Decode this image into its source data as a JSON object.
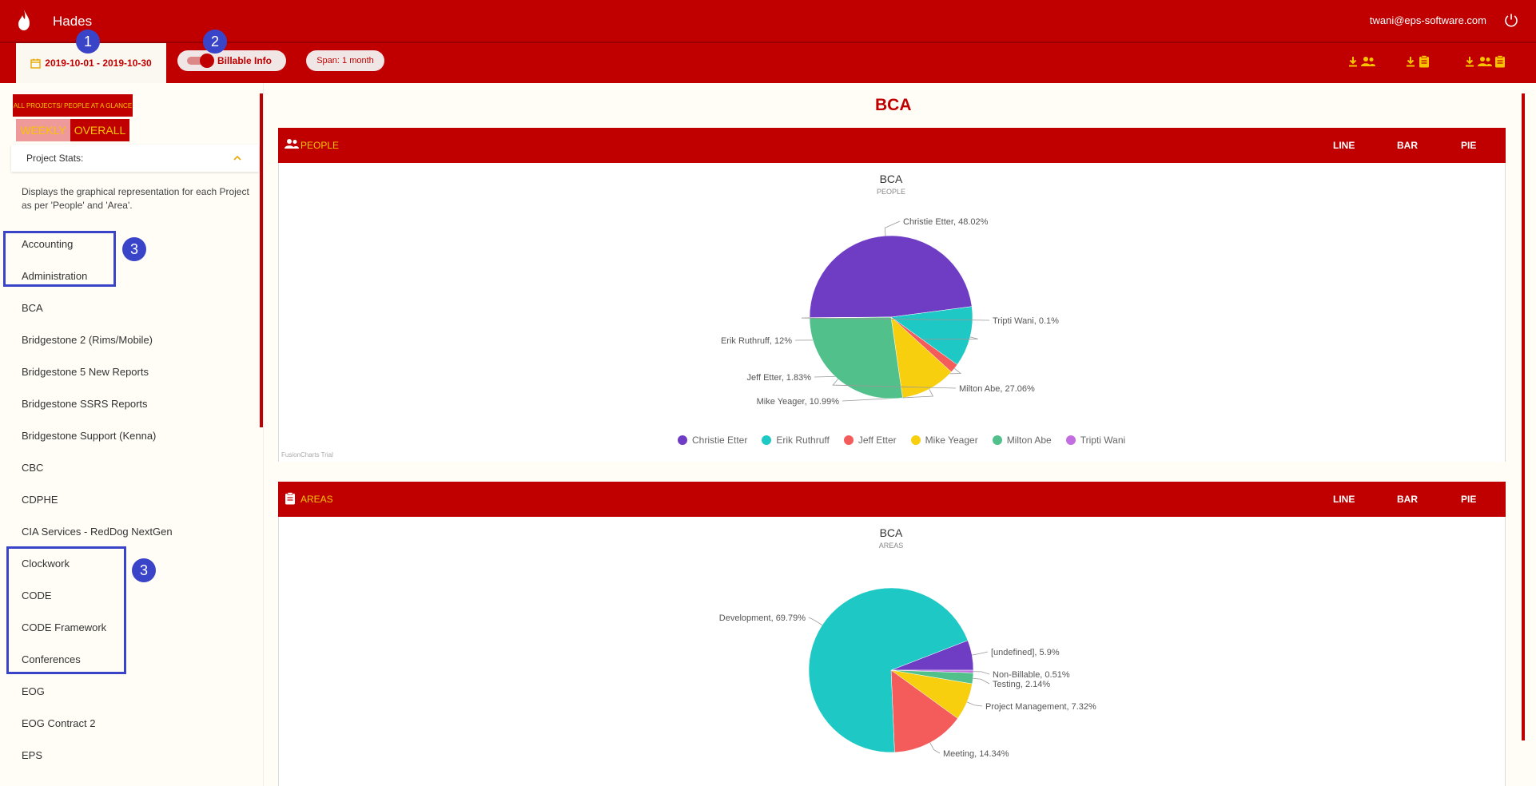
{
  "header": {
    "app_title": "Hades",
    "user_email": "twani@eps-software.com",
    "date_range": "2019-10-01 - 2019-10-30",
    "billable_label": "Billable Info",
    "span_label": "Span: 1 month",
    "icons": [
      "flame-icon",
      "power-icon",
      "calendar-icon",
      "download-people-icon",
      "download-areas-icon",
      "download-all-icon"
    ]
  },
  "annotations": [
    "1",
    "2",
    "3",
    "3"
  ],
  "sidebar": {
    "all_projects_label": "ALL PROJECTS/ PEOPLE AT A GLANCE",
    "tab_weekly": "WEEKLY",
    "tab_overall": "OVERALL",
    "stats_title": "Project Stats:",
    "description": "Displays the graphical representation for each Project as per 'People' and 'Area'.",
    "projects": [
      "Accounting",
      "Administration",
      "BCA",
      "Bridgestone 2 (Rims/Mobile)",
      "Bridgestone 5 New Reports",
      "Bridgestone SSRS Reports",
      "Bridgestone Support (Kenna)",
      "CBC",
      "CDPHE",
      "CIA Services - RedDog NextGen",
      "Clockwork",
      "CODE",
      "CODE Framework",
      "Conferences",
      "EOG",
      "EOG Contract 2",
      "EPS"
    ]
  },
  "main": {
    "title": "BCA",
    "people_panel": {
      "title": "PEOPLE",
      "tabs": [
        "LINE",
        "BAR",
        "PIE"
      ],
      "chart_title": "BCA",
      "chart_subtitle": "PEOPLE",
      "watermark": "FusionCharts Trial"
    },
    "areas_panel": {
      "title": "AREAS",
      "tabs": [
        "LINE",
        "BAR",
        "PIE"
      ],
      "chart_title": "BCA",
      "chart_subtitle": "AREAS"
    }
  },
  "chart_data": [
    {
      "type": "pie",
      "title": "BCA",
      "subtitle": "PEOPLE",
      "categories": [
        "Christie Etter",
        "Erik Ruthruff",
        "Jeff Etter",
        "Mike Yeager",
        "Milton Abe",
        "Tripti Wani"
      ],
      "values": [
        48.02,
        12,
        1.83,
        10.99,
        27.06,
        0.1
      ],
      "labels": [
        "Christie Etter, 48.02%",
        "Erik Ruthruff, 12%",
        "Jeff Etter, 1.83%",
        "Mike Yeager, 10.99%",
        "Milton Abe, 27.06%",
        "Tripti Wani, 0.1%"
      ],
      "colors": [
        "#6f3cc4",
        "#1ec8c4",
        "#f45b5b",
        "#f7cf0e",
        "#52c08a",
        "#c36ee0"
      ],
      "legend": "bottom"
    },
    {
      "type": "pie",
      "title": "BCA",
      "subtitle": "AREAS",
      "categories": [
        "[undefined]",
        "Non-Billable",
        "Testing",
        "Project Management",
        "Meeting",
        "Development"
      ],
      "values": [
        5.9,
        0.51,
        2.14,
        7.32,
        14.34,
        69.79
      ],
      "labels": [
        "[undefined], 5.9%",
        "Non-Billable, 0.51%",
        "Testing, 2.14%",
        "Project Management, 7.32%",
        "Meeting, 14.34%",
        "Development, 69.79%"
      ],
      "colors": [
        "#6f3cc4",
        "#c36ee0",
        "#52c08a",
        "#f7cf0e",
        "#f45b5b",
        "#1ec8c4"
      ]
    }
  ]
}
